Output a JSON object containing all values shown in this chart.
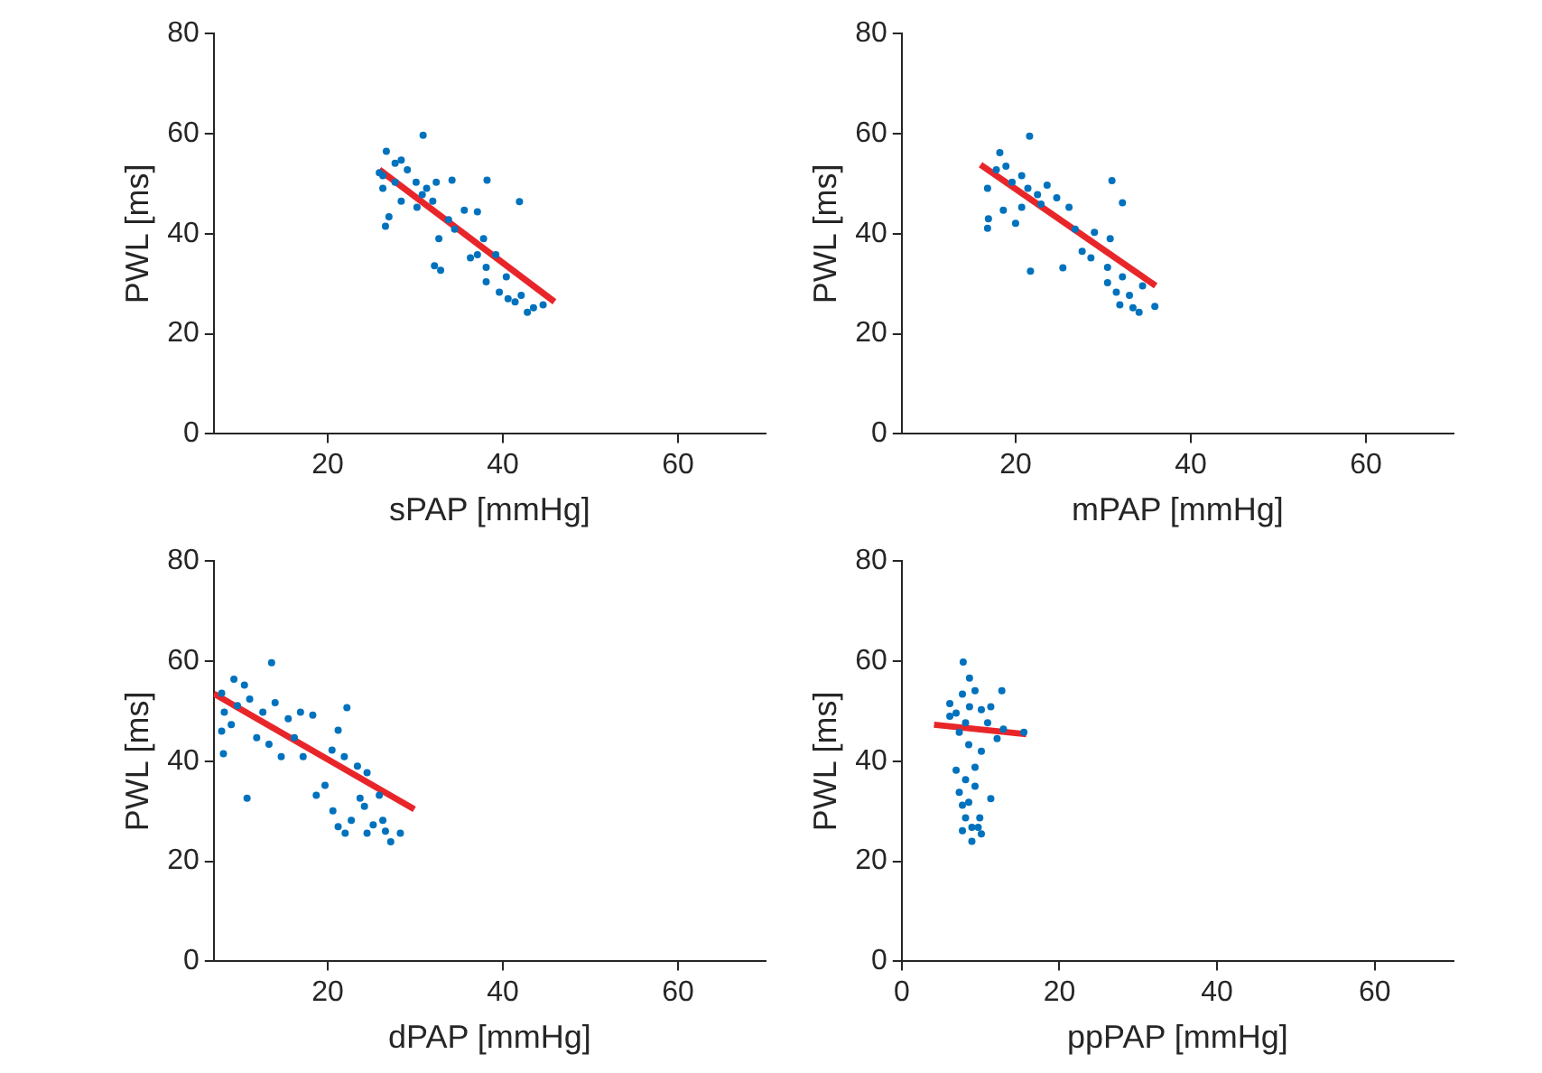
{
  "chart_data": [
    {
      "type": "scatter",
      "xlabel": "sPAP [mmHg]",
      "ylabel": "PWL [ms]",
      "xlim": [
        7,
        70
      ],
      "xticks": [
        20,
        40,
        60
      ],
      "ylim": [
        0,
        80
      ],
      "yticks": [
        0,
        20,
        40,
        60,
        80
      ],
      "grid": false,
      "marker": "circle",
      "series": [
        {
          "type": "scatter",
          "color": "#0072bd",
          "x": [
            30.9,
            26.7,
            25.9,
            26.3,
            26.6,
            27.0,
            27.7,
            28.4,
            29.1,
            30.1,
            30.8,
            31.3,
            32.0,
            32.4,
            34.2,
            38.2,
            41.9,
            32.2,
            32.9,
            32.7,
            33.8,
            34.5,
            35.6,
            37.1,
            36.3,
            37.1,
            37.8,
            38.1,
            38.1,
            39.6,
            40.6,
            41.4,
            42.1,
            42.8,
            43.5,
            44.6,
            40.4,
            39.2,
            30.2,
            28.4,
            27.7,
            26.3
          ],
          "values": [
            59.7,
            56.5,
            52.2,
            49.1,
            41.5,
            43.4,
            54.1,
            54.7,
            52.8,
            50.3,
            47.8,
            49.1,
            46.5,
            50.3,
            50.7,
            50.7,
            46.4,
            33.6,
            32.7,
            39.0,
            42.8,
            40.9,
            44.7,
            44.4,
            35.2,
            35.8,
            39.0,
            33.3,
            30.4,
            28.3,
            27.0,
            26.4,
            27.7,
            24.3,
            25.2,
            25.8,
            31.4,
            35.8,
            45.3,
            46.5,
            50.3,
            51.6
          ]
        },
        {
          "type": "line",
          "color": "#e8262a",
          "marker": "none",
          "x": [
            25.9,
            45.9
          ],
          "values": [
            52.8,
            26.4
          ]
        }
      ]
    },
    {
      "type": "scatter",
      "xlabel": "mPAP [mmHg]",
      "ylabel": "PWL [ms]",
      "xlim": [
        7,
        70
      ],
      "xticks": [
        20,
        40,
        60
      ],
      "ylim": [
        0,
        80
      ],
      "yticks": [
        0,
        20,
        40,
        60,
        80
      ],
      "grid": false,
      "marker": "circle",
      "series": [
        {
          "type": "scatter",
          "color": "#0072bd",
          "x": [
            21.6,
            18.2,
            16.8,
            16.8,
            16.9,
            17.8,
            18.9,
            19.6,
            20.7,
            21.4,
            22.5,
            23.6,
            24.7,
            26.1,
            20.0,
            21.7,
            25.4,
            26.8,
            27.6,
            28.6,
            29.0,
            30.5,
            30.8,
            31.0,
            32.2,
            30.5,
            31.5,
            31.9,
            33.0,
            33.4,
            34.1,
            34.5,
            35.9,
            32.2,
            22.9,
            20.7,
            18.6
          ],
          "values": [
            59.5,
            56.2,
            49.1,
            41.1,
            43.0,
            52.8,
            53.5,
            50.3,
            51.6,
            49.1,
            47.8,
            49.7,
            47.2,
            45.3,
            42.1,
            32.5,
            33.2,
            40.9,
            36.5,
            35.2,
            40.3,
            33.3,
            39.0,
            50.6,
            46.2,
            30.2,
            28.3,
            25.8,
            27.7,
            25.2,
            24.3,
            29.6,
            25.5,
            31.4,
            45.9,
            45.3,
            44.7
          ]
        },
        {
          "type": "line",
          "color": "#e8262a",
          "marker": "none",
          "x": [
            16.0,
            36.0
          ],
          "values": [
            53.8,
            29.6
          ]
        }
      ]
    },
    {
      "type": "scatter",
      "xlabel": "dPAP [mmHg]",
      "ylabel": "PWL [ms]",
      "xlim": [
        7,
        70
      ],
      "xticks": [
        20,
        40,
        60
      ],
      "ylim": [
        0,
        80
      ],
      "yticks": [
        0,
        20,
        40,
        60,
        80
      ],
      "grid": false,
      "marker": "circle",
      "series": [
        {
          "type": "scatter",
          "color": "#0072bd",
          "x": [
            13.6,
            9.3,
            10.5,
            7.9,
            8.2,
            7.9,
            8.1,
            10.8,
            9.7,
            11.1,
            12.6,
            14.0,
            15.5,
            16.9,
            18.3,
            22.2,
            21.2,
            16.2,
            14.7,
            17.2,
            18.7,
            19.7,
            20.5,
            21.9,
            20.6,
            21.2,
            22.0,
            22.7,
            23.4,
            24.5,
            23.7,
            24.2,
            24.5,
            25.2,
            25.9,
            26.3,
            26.6,
            27.2,
            28.3,
            11.9,
            13.3,
            9.0
          ],
          "values": [
            59.7,
            56.4,
            55.2,
            53.6,
            49.8,
            46.0,
            41.5,
            32.6,
            51.1,
            52.4,
            49.8,
            51.7,
            48.5,
            49.8,
            49.2,
            50.7,
            46.2,
            44.7,
            40.9,
            40.9,
            33.2,
            35.2,
            42.2,
            40.9,
            30.1,
            26.9,
            25.6,
            28.2,
            39.0,
            37.7,
            32.6,
            31.0,
            25.6,
            27.3,
            33.2,
            28.2,
            26.0,
            23.9,
            25.6,
            44.7,
            43.4,
            47.3
          ]
        },
        {
          "type": "line",
          "color": "#e8262a",
          "marker": "none",
          "x": [
            7,
            29.9
          ],
          "values": [
            53.5,
            30.4
          ]
        }
      ]
    },
    {
      "type": "scatter",
      "xlabel": "ppPAP [mmHg]",
      "ylabel": "PWL [ms]",
      "xlim": [
        0,
        70
      ],
      "xticks": [
        0,
        20,
        40,
        60
      ],
      "ylim": [
        0,
        80
      ],
      "yticks": [
        0,
        20,
        40,
        60,
        80
      ],
      "grid": false,
      "marker": "circle",
      "series": [
        {
          "type": "scatter",
          "color": "#0072bd",
          "x": [
            7.8,
            8.6,
            12.7,
            6.1,
            6.9,
            8.6,
            10.1,
            11.3,
            7.7,
            9.3,
            12.1,
            12.9,
            15.5,
            7.3,
            8.5,
            10.1,
            6.9,
            9.3,
            8.1,
            7.3,
            9.3,
            11.3,
            7.7,
            8.5,
            8.1,
            7.7,
            8.9,
            8.9,
            9.9,
            10.1,
            9.7,
            6.1,
            10.9,
            8.1
          ],
          "values": [
            59.8,
            56.6,
            54.1,
            51.5,
            49.6,
            50.9,
            50.3,
            50.9,
            53.4,
            54.1,
            44.5,
            46.4,
            45.8,
            45.8,
            43.3,
            42.0,
            38.2,
            38.8,
            36.3,
            33.8,
            35.0,
            32.5,
            31.2,
            31.8,
            28.7,
            26.1,
            26.8,
            24.0,
            28.7,
            25.5,
            26.8,
            49.0,
            47.7,
            47.7
          ]
        },
        {
          "type": "line",
          "color": "#e8262a",
          "marker": "none",
          "x": [
            4.1,
            15.8
          ],
          "values": [
            47.3,
            45.4
          ]
        }
      ]
    }
  ]
}
